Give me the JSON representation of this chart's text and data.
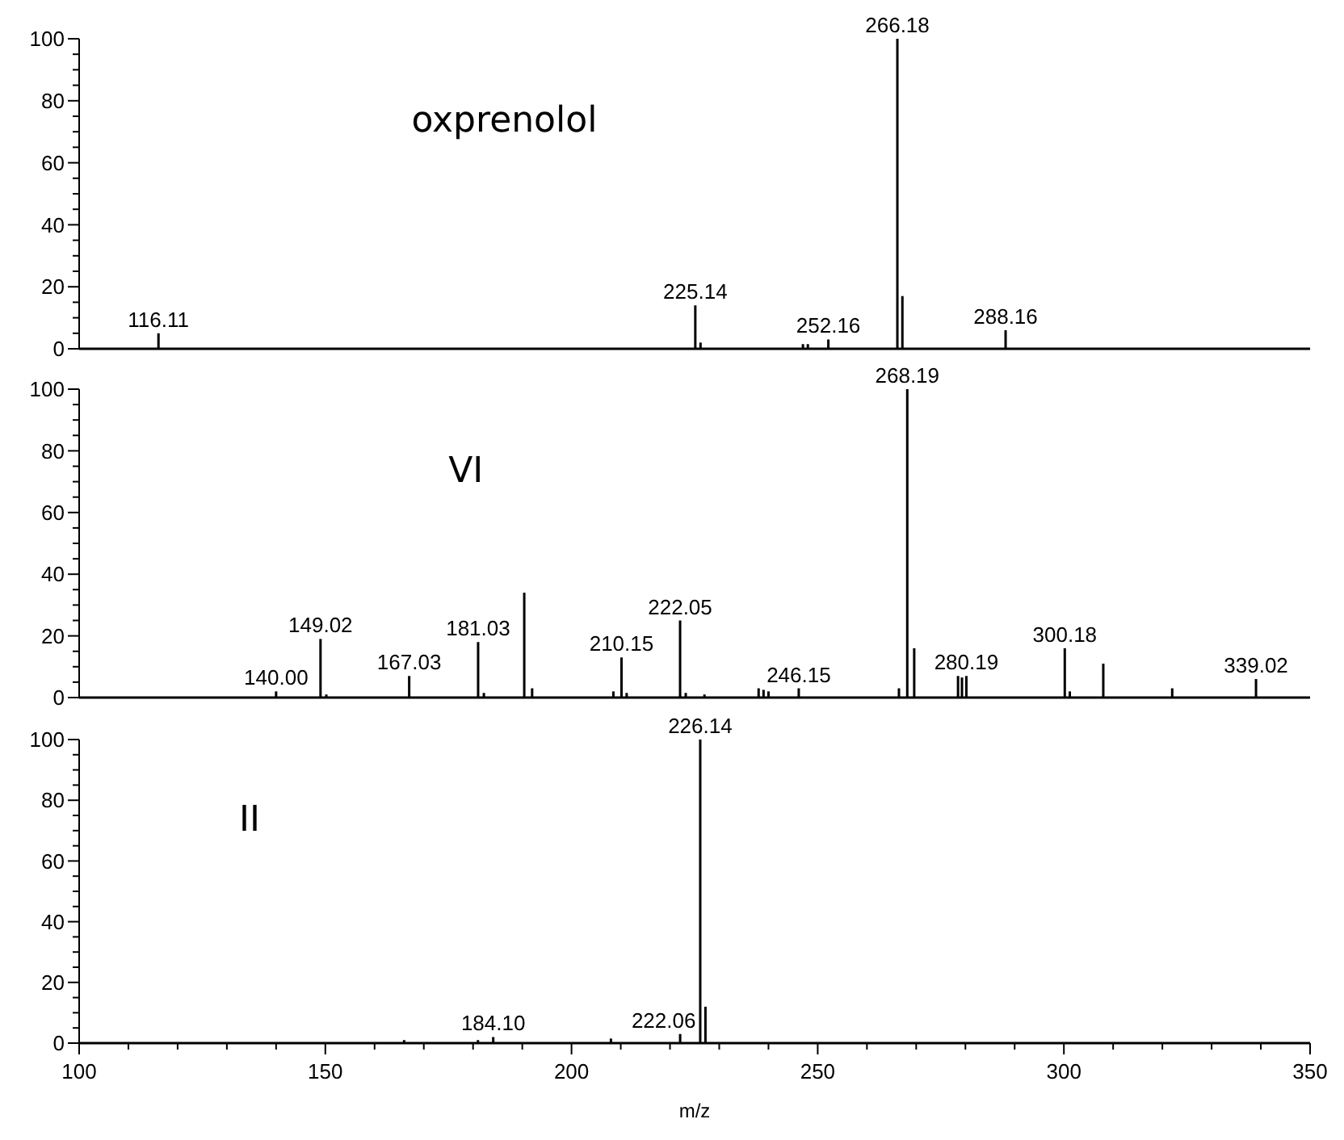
{
  "chart_data": [
    {
      "type": "bar",
      "annotations": [
        "oxprenolol",
        {
          "text": "116.11",
          "x": 116.11,
          "y": 5
        },
        {
          "text": "225.14",
          "x": 225.14,
          "y": 14
        },
        {
          "text": "252.16",
          "x": 252.16,
          "y": 3
        },
        {
          "text": "266.18",
          "x": 266.18,
          "y": 100
        },
        {
          "text": "288.16",
          "x": 288.16,
          "y": 6
        }
      ],
      "x": [
        116.11,
        225.14,
        226.2,
        247,
        248,
        252.16,
        266.18,
        267.2,
        288.16
      ],
      "values": [
        5,
        14,
        2,
        1.5,
        1.5,
        3,
        100,
        17,
        6
      ],
      "color": "#000000",
      "xlim": [
        100,
        350
      ],
      "ylim": [
        0,
        100
      ],
      "yticks": [
        0,
        {
          "value": 5,
          "label": null
        },
        {
          "value": 10,
          "label": null
        },
        {
          "value": 15,
          "label": null
        },
        20,
        {
          "value": 25,
          "label": null
        },
        {
          "value": 30,
          "label": null
        },
        {
          "value": 35,
          "label": null
        },
        40,
        {
          "value": 45,
          "label": null
        },
        {
          "value": 50,
          "label": null
        },
        {
          "value": 55,
          "label": null
        },
        60,
        {
          "value": 65,
          "label": null
        },
        {
          "value": 70,
          "label": null
        },
        {
          "value": 75,
          "label": null
        },
        80,
        {
          "value": 85,
          "label": null
        },
        {
          "value": 90,
          "label": null
        },
        {
          "value": 95,
          "label": null
        },
        100
      ],
      "tick_labels": "y"
    },
    {
      "type": "bar",
      "annotations": [
        "VI",
        {
          "text": "140.00",
          "x": 140.0,
          "y": 2
        },
        {
          "text": "149.02",
          "x": 149.02,
          "y": 19
        },
        {
          "text": "167.03",
          "x": 167.03,
          "y": 7
        },
        {
          "text": "181.03",
          "x": 181.03,
          "y": 18
        },
        {
          "text": "210.15",
          "x": 210.15,
          "y": 13
        },
        {
          "text": "222.05",
          "x": 222.05,
          "y": 25
        },
        {
          "text": "246.15",
          "x": 246.15,
          "y": 3
        },
        {
          "text": "268.19",
          "x": 268.19,
          "y": 100
        },
        {
          "text": "280.19",
          "x": 280.19,
          "y": 7
        },
        {
          "text": "300.18",
          "x": 300.18,
          "y": 16
        },
        {
          "text": "339.02",
          "x": 339.02,
          "y": 6
        }
      ],
      "x": [
        140.0,
        149.02,
        150.2,
        167.03,
        181.03,
        182.2,
        190.4,
        192,
        208.5,
        210.15,
        211.2,
        222.05,
        223.2,
        227,
        238,
        239,
        240,
        246.15,
        266.5,
        268.19,
        269.6,
        278.5,
        279.3,
        280.19,
        300.18,
        301.2,
        308,
        322,
        339.02
      ],
      "values": [
        2,
        19,
        1,
        7,
        18,
        1.5,
        34,
        3,
        2,
        13,
        1.5,
        25,
        1.5,
        1,
        3,
        2.5,
        2,
        3,
        3,
        100,
        16,
        7,
        6.5,
        7,
        16,
        2,
        11,
        3,
        6
      ],
      "color": "#000000",
      "xlim": [
        100,
        350
      ],
      "ylim": [
        0,
        100
      ],
      "yticks": [
        0,
        {
          "value": 5,
          "label": null
        },
        {
          "value": 10,
          "label": null
        },
        {
          "value": 15,
          "label": null
        },
        20,
        {
          "value": 25,
          "label": null
        },
        {
          "value": 30,
          "label": null
        },
        {
          "value": 35,
          "label": null
        },
        40,
        {
          "value": 45,
          "label": null
        },
        {
          "value": 50,
          "label": null
        },
        {
          "value": 55,
          "label": null
        },
        60,
        {
          "value": 65,
          "label": null
        },
        {
          "value": 70,
          "label": null
        },
        {
          "value": 75,
          "label": null
        },
        80,
        {
          "value": 85,
          "label": null
        },
        {
          "value": 90,
          "label": null
        },
        {
          "value": 95,
          "label": null
        },
        100
      ],
      "tick_labels": "y"
    },
    {
      "type": "bar",
      "annotations": [
        "II",
        {
          "text": "184.10",
          "x": 184.1,
          "y": 2
        },
        {
          "text": "222.06",
          "x": 222.06,
          "y": 3
        },
        {
          "text": "226.14",
          "x": 226.14,
          "y": 100
        }
      ],
      "x": [
        166,
        181,
        184.1,
        208,
        222.06,
        226.14,
        227.2
      ],
      "values": [
        1,
        1,
        2,
        1.5,
        3,
        100,
        12
      ],
      "color": "#000000",
      "xlabel": "m/z",
      "xlim": [
        100,
        350
      ],
      "xticks": [
        100,
        {
          "value": 110,
          "label": null
        },
        {
          "value": 120,
          "label": null
        },
        {
          "value": 130,
          "label": null
        },
        {
          "value": 140,
          "label": null
        },
        150,
        {
          "value": 160,
          "label": null
        },
        {
          "value": 170,
          "label": null
        },
        {
          "value": 180,
          "label": null
        },
        {
          "value": 190,
          "label": null
        },
        200,
        {
          "value": 210,
          "label": null
        },
        {
          "value": 220,
          "label": null
        },
        {
          "value": 230,
          "label": null
        },
        {
          "value": 240,
          "label": null
        },
        250,
        {
          "value": 260,
          "label": null
        },
        {
          "value": 270,
          "label": null
        },
        {
          "value": 280,
          "label": null
        },
        {
          "value": 290,
          "label": null
        },
        300,
        {
          "value": 310,
          "label": null
        },
        {
          "value": 320,
          "label": null
        },
        {
          "value": 330,
          "label": null
        },
        {
          "value": 340,
          "label": null
        },
        350
      ],
      "ylim": [
        0,
        100
      ],
      "yticks": [
        0,
        {
          "value": 5,
          "label": null
        },
        {
          "value": 10,
          "label": null
        },
        {
          "value": 15,
          "label": null
        },
        20,
        {
          "value": 25,
          "label": null
        },
        {
          "value": 30,
          "label": null
        },
        {
          "value": 35,
          "label": null
        },
        40,
        {
          "value": 45,
          "label": null
        },
        {
          "value": 50,
          "label": null
        },
        {
          "value": 55,
          "label": null
        },
        60,
        {
          "value": 65,
          "label": null
        },
        {
          "value": 70,
          "label": null
        },
        {
          "value": 75,
          "label": null
        },
        80,
        {
          "value": 85,
          "label": null
        },
        {
          "value": 90,
          "label": null
        },
        {
          "value": 95,
          "label": null
        },
        100
      ]
    }
  ]
}
